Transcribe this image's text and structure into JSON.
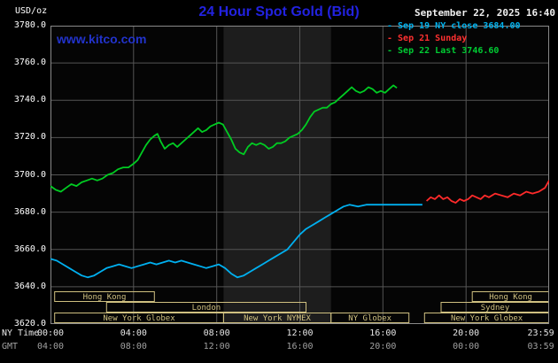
{
  "header": {
    "units_label": "USD/oz",
    "title": "24 Hour Spot Gold (Bid)",
    "datetime": "September 22, 2025 16:40",
    "watermark": "www.kitco.com"
  },
  "legend": {
    "marker": "-",
    "items": [
      {
        "label": "Sep 19 NY close 3684.00",
        "color": "#00b2ee"
      },
      {
        "label": "Sep 21 Sunday",
        "color": "#ff3030"
      },
      {
        "label": "Sep 22 Last 3746.60",
        "color": "#00cc33"
      }
    ]
  },
  "axes": {
    "y_ticks": [
      "3780.0",
      "3760.0",
      "3740.0",
      "3720.0",
      "3700.0",
      "3680.0",
      "3660.0",
      "3640.0",
      "3620.0"
    ],
    "tick_hours": [
      0,
      4,
      8,
      12,
      16,
      20,
      23.983
    ],
    "x_rows": [
      {
        "label": "NY Time",
        "color": "#e6e6e6",
        "ticks": [
          "00:00",
          "04:00",
          "08:00",
          "12:00",
          "16:00",
          "20:00",
          "23:59"
        ]
      },
      {
        "label": "GMT",
        "color": "#a0a0a0",
        "ticks": [
          "04:00",
          "08:00",
          "12:00",
          "16:00",
          "20:00",
          "00:00",
          "03:59"
        ]
      }
    ]
  },
  "colors": {
    "background": "#000000",
    "plot_bg": "#050505",
    "band": "#1d1d1d",
    "grid": "#555555",
    "border": "#8a8a8a",
    "session": "#cfc080",
    "title": "#2222e0",
    "link": "#2233cc",
    "text": "#ffffff"
  },
  "chart_data": {
    "type": "line",
    "title": "24 Hour Spot Gold (Bid)",
    "x_unit": "hours, NY time",
    "xlim": [
      0,
      24
    ],
    "ylim": [
      3620,
      3780
    ],
    "y_tick_step": 20,
    "x_tick_step_hours": 4,
    "grid": true,
    "legend_position": "top-right",
    "shaded_band_hours": [
      8.33,
      13.5
    ],
    "series": [
      {
        "name": "Sep 19 NY close 3684.00",
        "color": "#00b0f0",
        "points": [
          [
            0,
            3655
          ],
          [
            0.3,
            3654
          ],
          [
            0.6,
            3652
          ],
          [
            0.9,
            3650
          ],
          [
            1.2,
            3648
          ],
          [
            1.5,
            3646
          ],
          [
            1.8,
            3645
          ],
          [
            2.1,
            3646
          ],
          [
            2.4,
            3648
          ],
          [
            2.7,
            3650
          ],
          [
            3,
            3651
          ],
          [
            3.3,
            3652
          ],
          [
            3.6,
            3651
          ],
          [
            3.9,
            3650
          ],
          [
            4.2,
            3651
          ],
          [
            4.5,
            3652
          ],
          [
            4.8,
            3653
          ],
          [
            5.1,
            3652
          ],
          [
            5.4,
            3653
          ],
          [
            5.7,
            3654
          ],
          [
            6,
            3653
          ],
          [
            6.3,
            3654
          ],
          [
            6.6,
            3653
          ],
          [
            6.9,
            3652
          ],
          [
            7.2,
            3651
          ],
          [
            7.5,
            3650
          ],
          [
            7.8,
            3651
          ],
          [
            8.1,
            3652
          ],
          [
            8.4,
            3650
          ],
          [
            8.7,
            3647
          ],
          [
            9,
            3645
          ],
          [
            9.3,
            3646
          ],
          [
            9.6,
            3648
          ],
          [
            9.9,
            3650
          ],
          [
            10.2,
            3652
          ],
          [
            10.5,
            3654
          ],
          [
            10.8,
            3656
          ],
          [
            11.1,
            3658
          ],
          [
            11.4,
            3660
          ],
          [
            11.7,
            3664
          ],
          [
            12,
            3668
          ],
          [
            12.3,
            3671
          ],
          [
            12.6,
            3673
          ],
          [
            12.9,
            3675
          ],
          [
            13.2,
            3677
          ],
          [
            13.5,
            3679
          ],
          [
            13.8,
            3681
          ],
          [
            14.1,
            3683
          ],
          [
            14.4,
            3684
          ],
          [
            14.8,
            3683
          ],
          [
            15.2,
            3684
          ],
          [
            15.6,
            3684
          ],
          [
            16,
            3684
          ],
          [
            16.5,
            3684
          ],
          [
            17,
            3684
          ],
          [
            17.5,
            3684
          ],
          [
            17.9,
            3684
          ]
        ]
      },
      {
        "name": "Sep 21 Sunday",
        "color": "#ff2a2a",
        "points": [
          [
            18.1,
            3686
          ],
          [
            18.3,
            3688
          ],
          [
            18.5,
            3687
          ],
          [
            18.7,
            3689
          ],
          [
            18.9,
            3687
          ],
          [
            19.1,
            3688
          ],
          [
            19.3,
            3686
          ],
          [
            19.5,
            3685
          ],
          [
            19.7,
            3687
          ],
          [
            19.9,
            3686
          ],
          [
            20.1,
            3687
          ],
          [
            20.3,
            3689
          ],
          [
            20.5,
            3688
          ],
          [
            20.7,
            3687
          ],
          [
            20.9,
            3689
          ],
          [
            21.1,
            3688
          ],
          [
            21.4,
            3690
          ],
          [
            21.7,
            3689
          ],
          [
            22,
            3688
          ],
          [
            22.3,
            3690
          ],
          [
            22.6,
            3689
          ],
          [
            22.9,
            3691
          ],
          [
            23.2,
            3690
          ],
          [
            23.5,
            3691
          ],
          [
            23.8,
            3693
          ],
          [
            23.95,
            3696
          ],
          [
            24,
            3697
          ]
        ]
      },
      {
        "name": "Sep 22 Last 3746.60",
        "color": "#00cc22",
        "points": [
          [
            0,
            3694
          ],
          [
            0.25,
            3692
          ],
          [
            0.5,
            3691
          ],
          [
            0.75,
            3693
          ],
          [
            1,
            3695
          ],
          [
            1.25,
            3694
          ],
          [
            1.5,
            3696
          ],
          [
            1.75,
            3697
          ],
          [
            2,
            3698
          ],
          [
            2.25,
            3697
          ],
          [
            2.5,
            3698
          ],
          [
            2.75,
            3700
          ],
          [
            3,
            3701
          ],
          [
            3.25,
            3703
          ],
          [
            3.5,
            3704
          ],
          [
            3.75,
            3704
          ],
          [
            4,
            3706
          ],
          [
            4.2,
            3708
          ],
          [
            4.4,
            3712
          ],
          [
            4.6,
            3716
          ],
          [
            4.8,
            3719
          ],
          [
            5,
            3721
          ],
          [
            5.15,
            3722
          ],
          [
            5.3,
            3718
          ],
          [
            5.5,
            3714
          ],
          [
            5.7,
            3716
          ],
          [
            5.9,
            3717
          ],
          [
            6.1,
            3715
          ],
          [
            6.3,
            3717
          ],
          [
            6.5,
            3719
          ],
          [
            6.7,
            3721
          ],
          [
            6.9,
            3723
          ],
          [
            7.1,
            3725
          ],
          [
            7.3,
            3723
          ],
          [
            7.5,
            3724
          ],
          [
            7.7,
            3726
          ],
          [
            7.9,
            3727
          ],
          [
            8.1,
            3728
          ],
          [
            8.3,
            3727
          ],
          [
            8.5,
            3723
          ],
          [
            8.7,
            3719
          ],
          [
            8.9,
            3714
          ],
          [
            9.1,
            3712
          ],
          [
            9.3,
            3711
          ],
          [
            9.5,
            3715
          ],
          [
            9.7,
            3717
          ],
          [
            9.9,
            3716
          ],
          [
            10.1,
            3717
          ],
          [
            10.3,
            3716
          ],
          [
            10.5,
            3714
          ],
          [
            10.7,
            3715
          ],
          [
            10.9,
            3717
          ],
          [
            11.1,
            3717
          ],
          [
            11.3,
            3718
          ],
          [
            11.5,
            3720
          ],
          [
            11.7,
            3721
          ],
          [
            11.9,
            3722
          ],
          [
            12.1,
            3724
          ],
          [
            12.3,
            3727
          ],
          [
            12.5,
            3731
          ],
          [
            12.7,
            3734
          ],
          [
            12.9,
            3735
          ],
          [
            13.1,
            3736
          ],
          [
            13.3,
            3736
          ],
          [
            13.5,
            3738
          ],
          [
            13.7,
            3739
          ],
          [
            13.9,
            3741
          ],
          [
            14.1,
            3743
          ],
          [
            14.3,
            3745
          ],
          [
            14.5,
            3747
          ],
          [
            14.7,
            3745
          ],
          [
            14.9,
            3744
          ],
          [
            15.1,
            3745
          ],
          [
            15.3,
            3747
          ],
          [
            15.5,
            3746
          ],
          [
            15.7,
            3744
          ],
          [
            15.9,
            3745
          ],
          [
            16.1,
            3744
          ],
          [
            16.3,
            3746
          ],
          [
            16.5,
            3748
          ],
          [
            16.67,
            3746.6
          ]
        ]
      }
    ],
    "sessions": [
      {
        "row": 0,
        "label": "Hong Kong",
        "start": 0.2,
        "end": 5.0
      },
      {
        "row": 0,
        "label": "Hong Kong",
        "start": 20.3,
        "end": 24
      },
      {
        "row": 1,
        "label": "London",
        "start": 2.7,
        "end": 12.3
      },
      {
        "row": 1,
        "label": "Sydney",
        "start": 18.8,
        "end": 24
      },
      {
        "row": 2,
        "label": "New York Globex",
        "start": 0.2,
        "end": 8.33
      },
      {
        "row": 2,
        "label": "New York NYMEX",
        "start": 8.33,
        "end": 13.5
      },
      {
        "row": 2,
        "label": "NY Globex",
        "start": 13.5,
        "end": 17.25
      },
      {
        "row": 2,
        "label": "New York Globex",
        "start": 18.0,
        "end": 24
      }
    ]
  }
}
